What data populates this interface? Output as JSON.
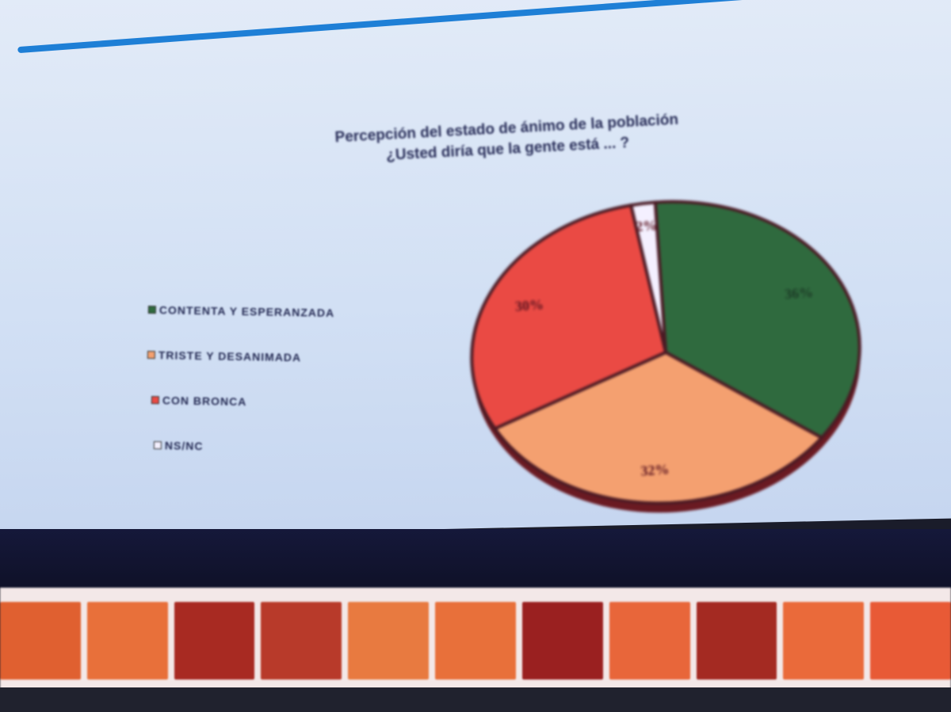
{
  "chart_data": {
    "type": "pie",
    "title": "Percepción del estado de ánimo de la población",
    "subtitle": "¿Usted diría que la gente está ... ?",
    "legend_position": "left",
    "categories": [
      "CONTENTA Y ESPERANZADA",
      "TRISTE Y DESANIMADA",
      "CON BRONCA",
      "NS/NC"
    ],
    "values": [
      36,
      32,
      30,
      2
    ],
    "labels": [
      "36%",
      "32%",
      "30%",
      "2%"
    ],
    "colors": [
      "#2f6a3e",
      "#f4a070",
      "#ea4a44",
      "#f4f0ff"
    ]
  },
  "strip_colors": [
    "#e06030",
    "#e8703a",
    "#a82a22",
    "#b83a2a",
    "#e87a40",
    "#e8703a",
    "#9a2020",
    "#e8663a",
    "#a42a22",
    "#ea6a3a",
    "#e85a36"
  ]
}
